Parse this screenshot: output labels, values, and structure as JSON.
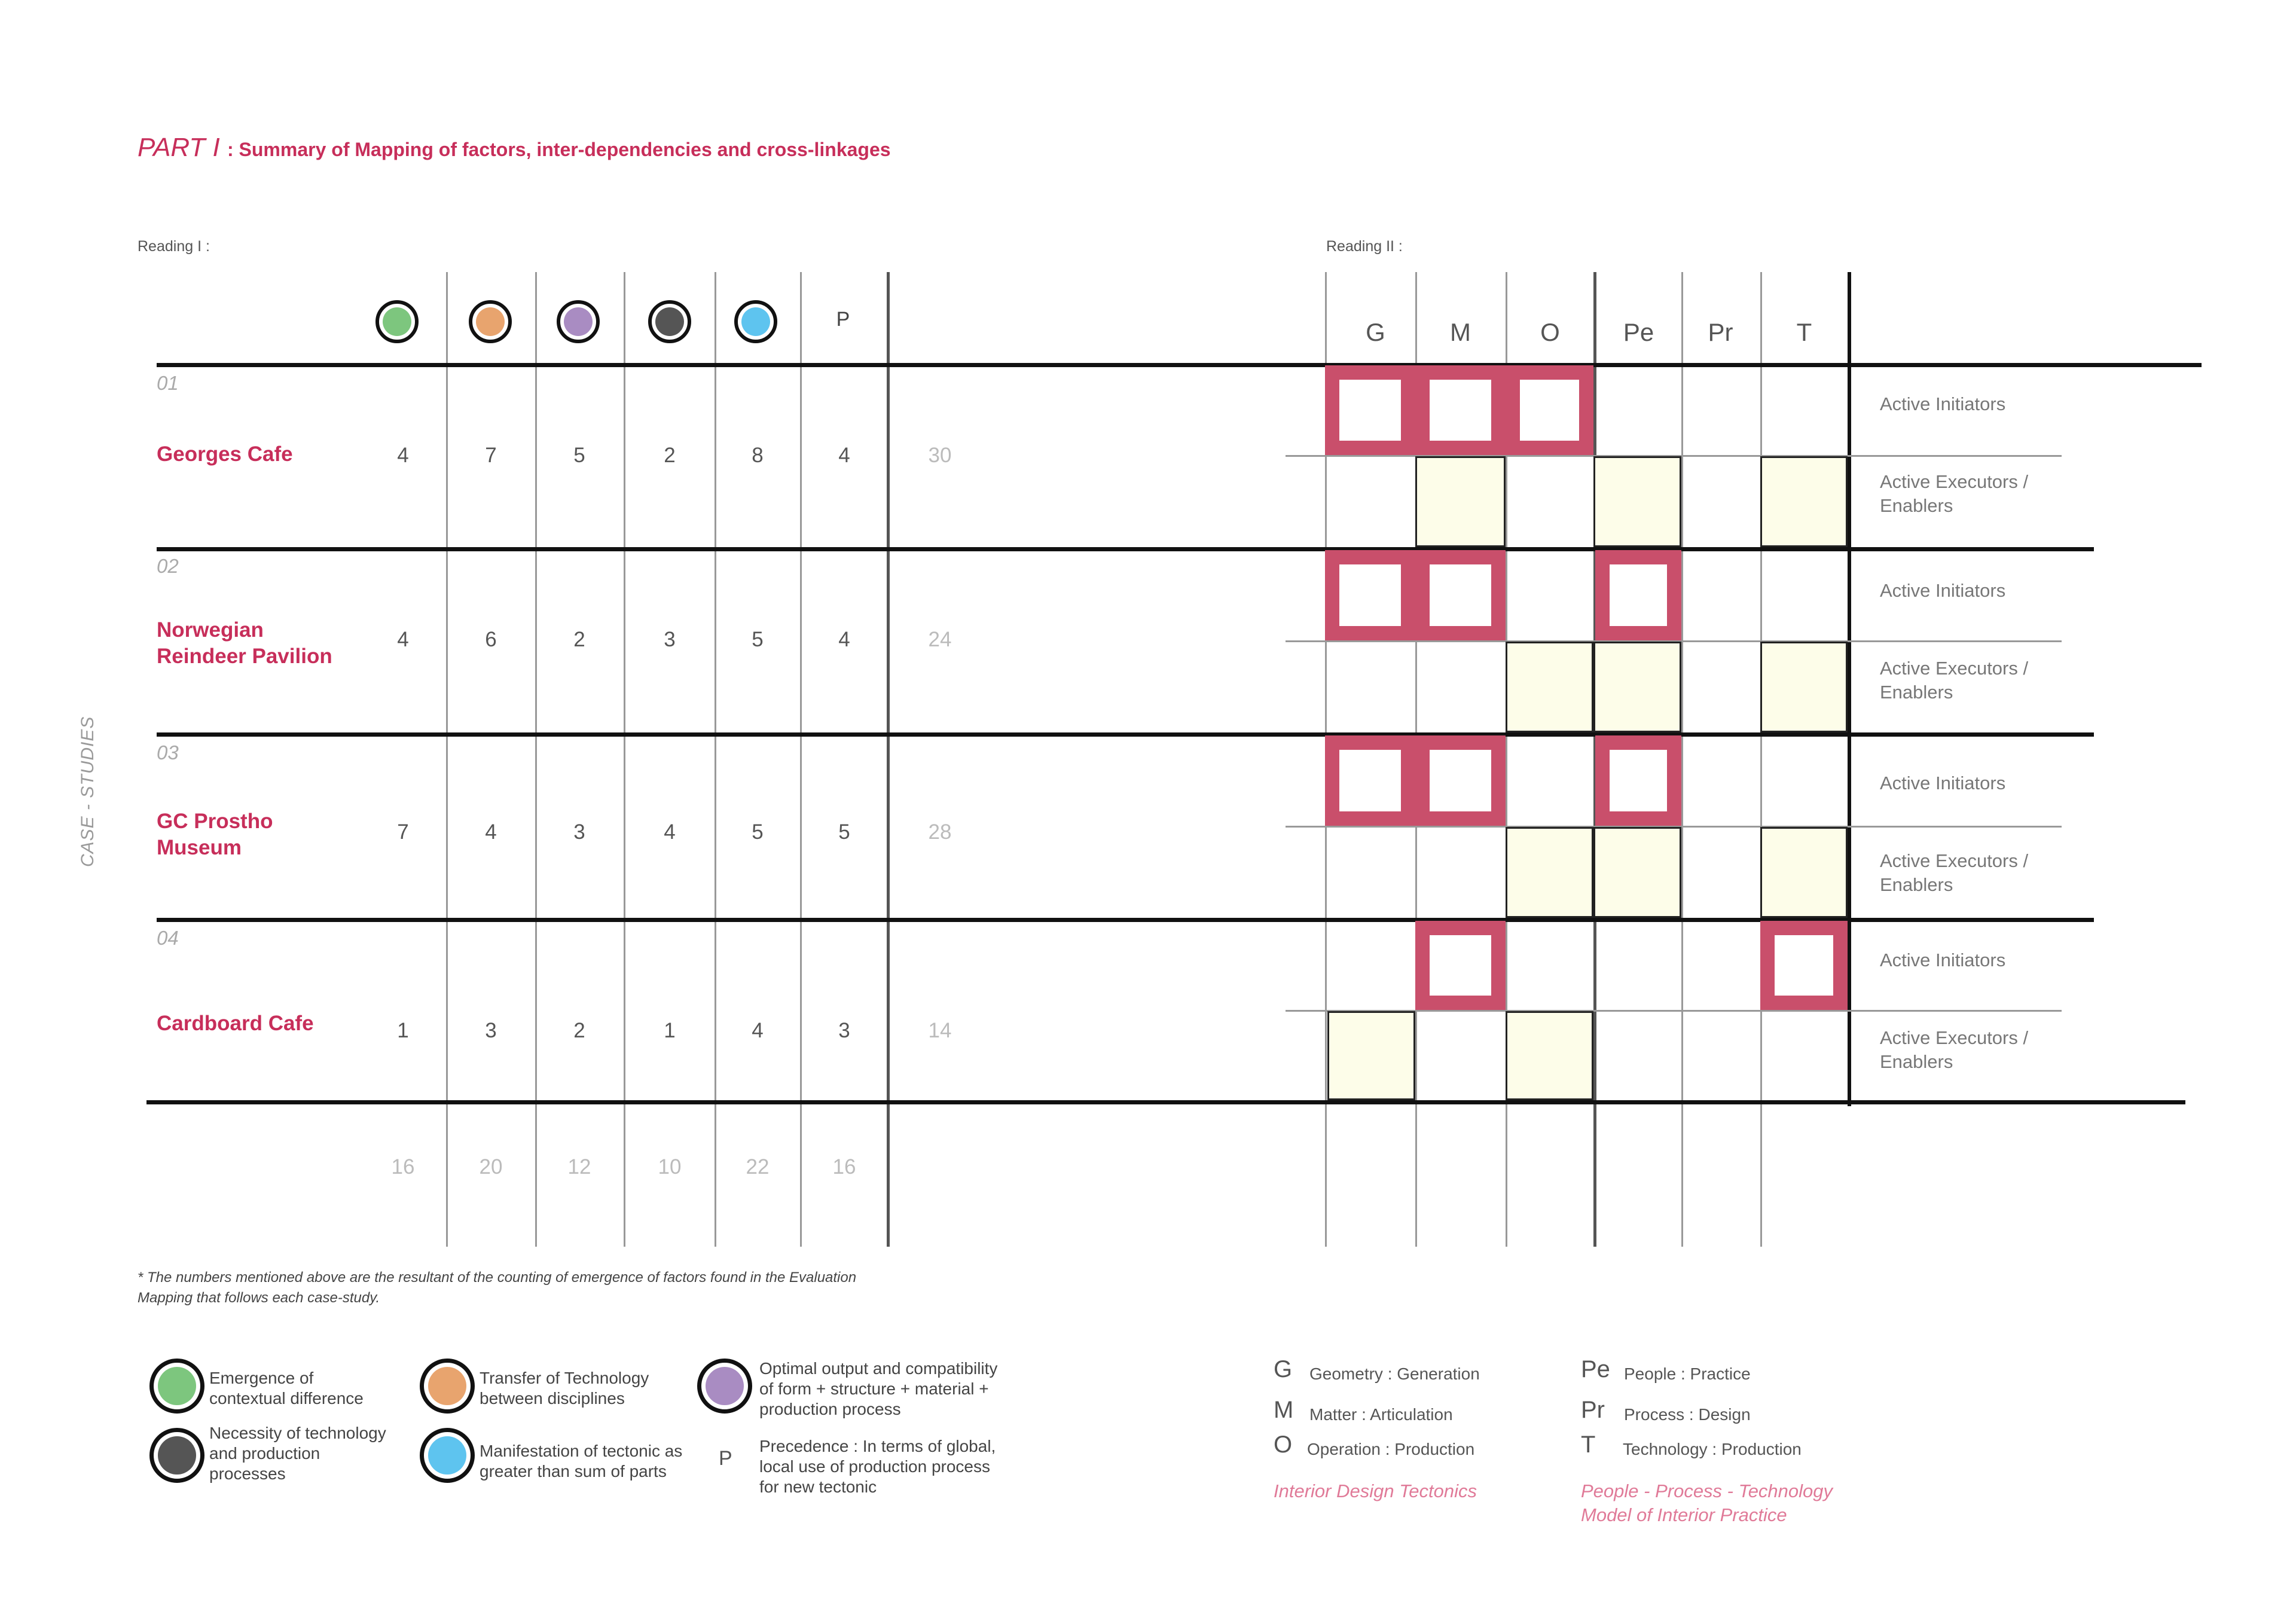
{
  "title": {
    "part": "PART I",
    "subtitle": ": Summary of Mapping of factors, inter-dependencies and cross-linkages"
  },
  "reading1": "Reading I :",
  "reading2": "Reading II :",
  "side_label": "CASE - STUDIES",
  "factor_colors": [
    "#7dc67e",
    "#e8a46e",
    "#a98cc2",
    "#555555",
    "#5ec4ef"
  ],
  "factor_p": "P",
  "reading2_columns": [
    "G",
    "M",
    "O",
    "Pe",
    "Pr",
    "T"
  ],
  "cases": [
    {
      "num": "01",
      "name_line1": "Georges Cafe",
      "name_line2": "",
      "values": [
        "4",
        "7",
        "5",
        "2",
        "8",
        "4"
      ],
      "total": "30"
    },
    {
      "num": "02",
      "name_line1": "Norwegian",
      "name_line2": "Reindeer Pavilion",
      "values": [
        "4",
        "6",
        "2",
        "3",
        "5",
        "4"
      ],
      "total": "24"
    },
    {
      "num": "03",
      "name_line1": "GC Prostho",
      "name_line2": "Museum",
      "values": [
        "7",
        "4",
        "3",
        "4",
        "5",
        "5"
      ],
      "total": "28"
    },
    {
      "num": "04",
      "name_line1": "Cardboard Cafe",
      "name_line2": "",
      "values": [
        "1",
        "3",
        "2",
        "1",
        "4",
        "3"
      ],
      "total": "14"
    }
  ],
  "column_totals": [
    "16",
    "20",
    "12",
    "10",
    "22",
    "16"
  ],
  "row_labels": {
    "initiators": "Active Initiators",
    "executors_1": "Active Executors /",
    "executors_2": "Enablers"
  },
  "footnote_1": "* The numbers mentioned above are the resultant of the counting of emergence of factors found in the Evaluation",
  "footnote_2": "Mapping that follows each case-study.",
  "legend": {
    "green_1": "Emergence of",
    "green_2": "contextual difference",
    "orange_1": "Transfer of Technology",
    "orange_2": "between disciplines",
    "purple_1": "Optimal output and compatibility",
    "purple_2": "of form + structure +  material +",
    "purple_3": "production process",
    "dark_1": "Necessity of technology",
    "dark_2": "and production",
    "dark_3": "processes",
    "blue_1": "Manifestation of tectonic as",
    "blue_2": "greater than sum of parts",
    "p_letter": "P",
    "p_1": "Precedence : In terms of global,",
    "p_2": "local use of production process",
    "p_3": "for new tectonic"
  },
  "legend2": {
    "G": "G",
    "G_text": "Geometry : Generation",
    "M": "M",
    "M_text": "Matter : Articulation",
    "O": "O",
    "O_text": "Operation : Production",
    "idt": "Interior Design Tectonics",
    "Pe": "Pe",
    "Pe_text": "People : Practice",
    "Pr": "Pr",
    "Pr_text": "Process : Design",
    "T": "T",
    "T_text": "Technology : Production",
    "ppt_1": "People - Process - Technology",
    "ppt_2": "Model of Interior Practice"
  }
}
